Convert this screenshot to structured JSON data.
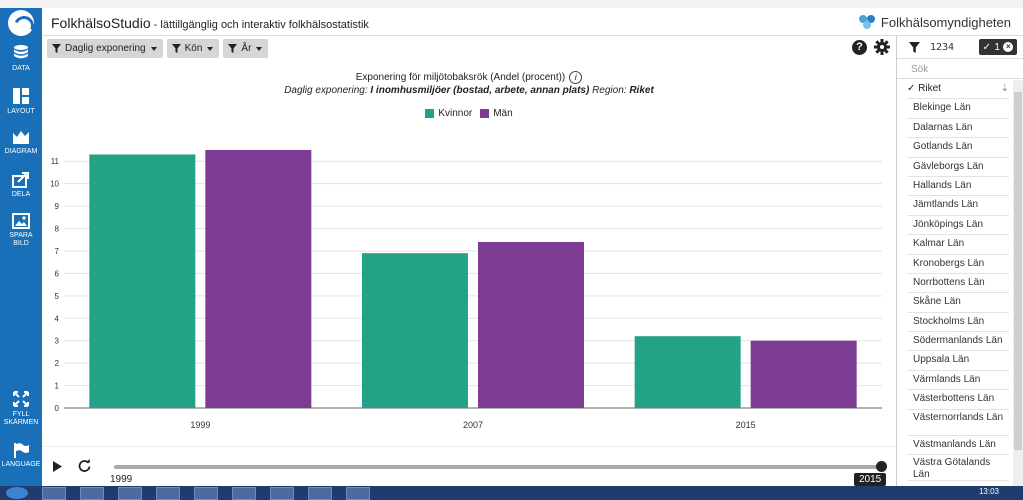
{
  "app": {
    "title": "FolkhälsoStudio",
    "subtitle": " - lättillgänglig och interaktiv folkhälsostatistik",
    "brand": "Folkhälsomyndigheten"
  },
  "sidebar": {
    "items": [
      {
        "label": "DATA",
        "icon": "database-icon"
      },
      {
        "label": "LAYOUT",
        "icon": "layout-icon"
      },
      {
        "label": "DIAGRAM",
        "icon": "chart-icon"
      },
      {
        "label": "DELA",
        "icon": "share-icon"
      },
      {
        "label": "SPARA BILD",
        "icon": "image-icon"
      },
      {
        "label": "FYLL SKÄRMEN",
        "icon": "fullscreen-icon"
      },
      {
        "label": "LANGUAGE",
        "icon": "flag-icon"
      }
    ]
  },
  "filters": [
    {
      "label": "Daglig exponering"
    },
    {
      "label": "Kön"
    },
    {
      "label": "År"
    }
  ],
  "chart_data": {
    "type": "bar",
    "title": "Exponering för miljötobaksrök (Andel (procent))",
    "subtitle_prefix": "Daglig exponering: ",
    "subtitle_value": "I inomhusmiljöer (bostad, arbete, annan plats)",
    "subtitle_region_label": " Region: ",
    "subtitle_region": "Riket",
    "categories": [
      "1999",
      "2007",
      "2015"
    ],
    "series": [
      {
        "name": "Kvinnor",
        "color": "#23a287",
        "values": [
          11.3,
          6.9,
          3.2
        ]
      },
      {
        "name": "Män",
        "color": "#7c3c94",
        "values": [
          11.5,
          7.4,
          3.0
        ]
      }
    ],
    "yticks": [
      0,
      1,
      2,
      3,
      4,
      5,
      6,
      7,
      8,
      9,
      10,
      11
    ],
    "ylim": [
      0,
      11.9
    ],
    "grid": true,
    "legend": "top-center"
  },
  "player": {
    "start_year": "1999",
    "end_year": "2015",
    "progress": 1.0
  },
  "right_panel": {
    "code": "1234",
    "badge_count": "1",
    "search_placeholder": "Sök",
    "selected": "Riket",
    "regions": [
      "Blekinge Län",
      "Dalarnas Län",
      "Gotlands Län",
      "Gävleborgs Län",
      "Hallands Län",
      "Jämtlands Län",
      "Jönköpings Län",
      "Kalmar Län",
      "Kronobergs Län",
      "Norrbottens Län",
      "Skåne Län",
      "Stockholms Län",
      "Södermanlands Län",
      "Uppsala Län",
      "Värmlands Län",
      "Västerbottens Län",
      "Västernorrlands Län",
      "Västmanlands Län",
      "Västra Götalands Län"
    ]
  },
  "taskbar": {
    "time": "13:03"
  }
}
